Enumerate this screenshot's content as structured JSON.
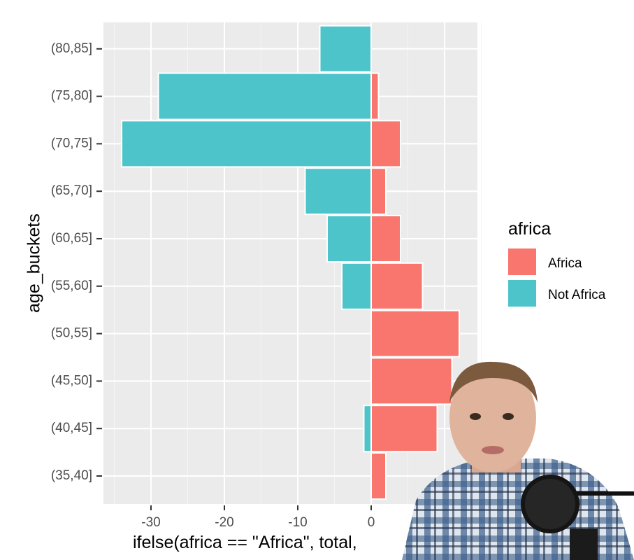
{
  "chart_data": {
    "type": "bar",
    "orientation": "horizontal",
    "ylabel": "age_buckets",
    "xlabel": "ifelse(africa == \"Africa\", total,",
    "categories": [
      "(35,40]",
      "(40,45]",
      "(45,50]",
      "(50,55]",
      "(55,60]",
      "(60,65]",
      "(65,70]",
      "(70,75]",
      "(75,80]",
      "(80,85]"
    ],
    "x_ticks": [
      -30,
      -20,
      -10,
      0
    ],
    "xlim": [
      -36,
      15
    ],
    "grid": true,
    "legend": {
      "title": "africa",
      "position": "right"
    },
    "series": [
      {
        "name": "Africa",
        "color": "#F8766D",
        "values": [
          2,
          9,
          11,
          12,
          7,
          4,
          2,
          4,
          1,
          0
        ]
      },
      {
        "name": "Not Africa",
        "color": "#00BFC4",
        "values": [
          0,
          -1,
          0,
          0,
          -4,
          -6,
          -9,
          -34,
          -29,
          -7
        ]
      }
    ]
  },
  "colors": {
    "panel_bg": "#EBEBEB",
    "grid": "#FFFFFF",
    "africa": "#F8766D",
    "not_africa": "#4DC4CA"
  }
}
